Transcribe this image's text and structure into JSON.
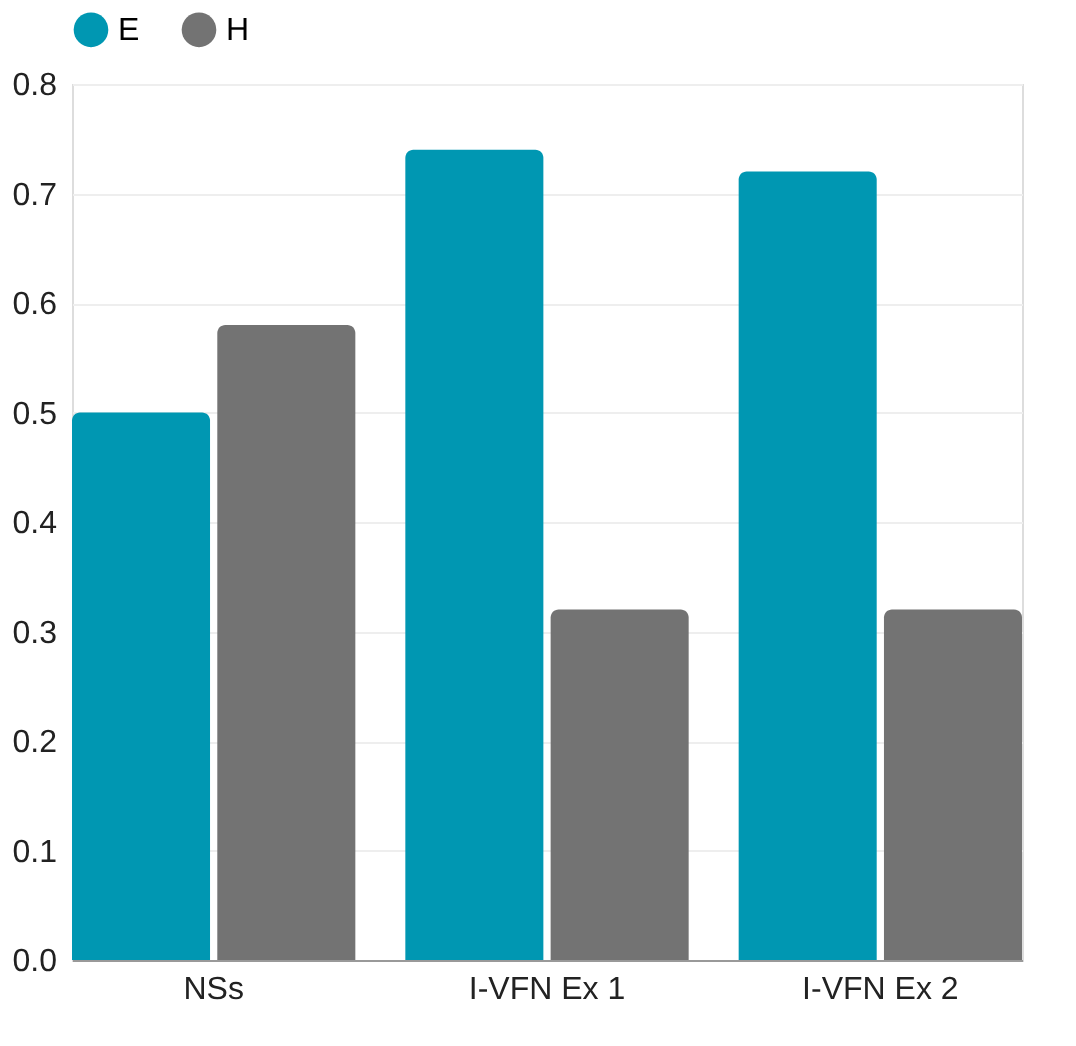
{
  "chart_data": {
    "type": "bar",
    "categories": [
      "NSs",
      "I-VFN Ex 1",
      "I-VFN Ex 2"
    ],
    "series": [
      {
        "name": "E",
        "color": "#0097b2",
        "values": [
          0.5,
          0.74,
          0.72
        ]
      },
      {
        "name": "H",
        "color": "#737373",
        "values": [
          0.58,
          0.32,
          0.32
        ]
      }
    ],
    "ylim": [
      0,
      0.8
    ],
    "yticks": [
      {
        "value": 0,
        "label": "0.0"
      },
      {
        "value": 0.1,
        "label": "0.1"
      },
      {
        "value": 0.2,
        "label": "0.2"
      },
      {
        "value": 0.3,
        "label": "0.3"
      },
      {
        "value": 0.4,
        "label": "0.4"
      },
      {
        "value": 0.5,
        "label": "0.5"
      },
      {
        "value": 0.6,
        "label": "0.6"
      },
      {
        "value": 0.7,
        "label": "0.7"
      },
      {
        "value": 0.8,
        "label": "0.8"
      }
    ],
    "grid": "y",
    "legend": "top"
  }
}
